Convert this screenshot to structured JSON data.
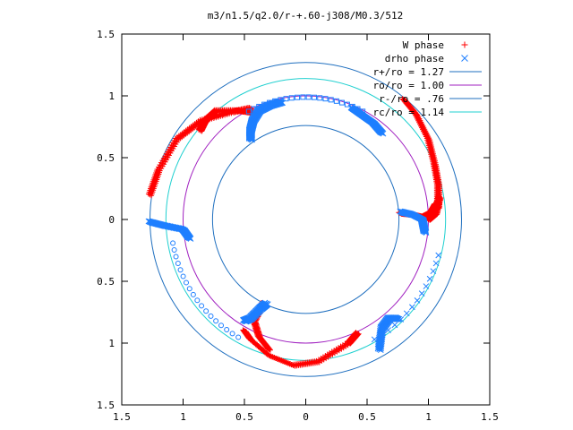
{
  "chart_data": {
    "type": "scatter",
    "title": "m3/n1.5/q2.0/r-+.60-j308/M0.3/512",
    "xlabel": "",
    "ylabel": "",
    "xlim": [
      -1.5,
      1.5
    ],
    "ylim": [
      -1.5,
      1.5
    ],
    "x_ticks": [
      -1.5,
      -1,
      -0.5,
      0,
      0.5,
      1,
      1.5
    ],
    "x_tick_labels": [
      "1.5",
      "1",
      "0.5",
      "0",
      "0.5",
      "1",
      "1.5"
    ],
    "y_ticks": [
      1.5,
      1,
      0.5,
      0,
      -0.5,
      -1,
      -1.5
    ],
    "y_tick_labels": [
      "1.5",
      "1",
      "0.5",
      "0",
      "0.5",
      "1",
      "1.5"
    ],
    "grid": false,
    "legend_position": "top-right",
    "colors": {
      "w_phase": "#ff0000",
      "drho_phase": "#1e7fff",
      "circle_rplus": "#1f6fbf",
      "circle_ro": "#a020c0",
      "circle_rminus": "#1f6fbf",
      "circle_rc": "#20d0d0"
    },
    "circles": [
      {
        "name": "r+/ro = 1.27",
        "radius": 1.27,
        "color_key": "circle_rplus"
      },
      {
        "name": "ro/ro = 1.00",
        "radius": 1.0,
        "color_key": "circle_ro"
      },
      {
        "name": "r-/ro = .76",
        "radius": 0.76,
        "color_key": "circle_rminus"
      },
      {
        "name": "rc/ro = 1.14",
        "radius": 1.14,
        "color_key": "circle_rc"
      }
    ],
    "series": [
      {
        "name": "W phase",
        "marker": "plus",
        "arms": [
          {
            "path": [
              [
                -1.27,
                0.2
              ],
              [
                -1.2,
                0.4
              ],
              [
                -1.05,
                0.65
              ],
              [
                -0.85,
                0.8
              ],
              [
                -0.6,
                0.87
              ],
              [
                -0.45,
                0.9
              ]
            ]
          },
          {
            "path": [
              [
                -0.42,
                0.86
              ],
              [
                -0.55,
                0.88
              ],
              [
                -0.73,
                0.88
              ],
              [
                -0.82,
                0.8
              ],
              [
                -0.86,
                0.72
              ]
            ]
          },
          {
            "path": [
              [
                0.42,
                -0.92
              ],
              [
                0.35,
                -1.0
              ],
              [
                0.1,
                -1.15
              ],
              [
                -0.1,
                -1.18
              ],
              [
                -0.3,
                -1.1
              ],
              [
                -0.45,
                -0.97
              ],
              [
                -0.5,
                -0.9
              ]
            ]
          },
          {
            "path": [
              [
                -0.35,
                -0.68
              ],
              [
                -0.42,
                -0.82
              ],
              [
                -0.38,
                -0.95
              ],
              [
                -0.3,
                -1.05
              ]
            ]
          },
          {
            "path": [
              [
                0.8,
                0.97
              ],
              [
                0.9,
                0.85
              ],
              [
                1.0,
                0.65
              ],
              [
                1.05,
                0.45
              ],
              [
                1.08,
                0.28
              ],
              [
                1.08,
                0.1
              ]
            ]
          },
          {
            "path": [
              [
                0.77,
                0.05
              ],
              [
                0.87,
                0.04
              ],
              [
                0.96,
                0.02
              ],
              [
                1.02,
                0.05
              ],
              [
                1.06,
                0.12
              ]
            ]
          },
          {
            "path": [
              [
                1.0,
                0.0
              ],
              [
                1.06,
                0.05
              ],
              [
                1.09,
                0.18
              ]
            ]
          }
        ]
      },
      {
        "name": "drho phase",
        "marker": "cross",
        "arms": [
          {
            "path": [
              [
                -0.45,
                0.65
              ],
              [
                -0.45,
                0.72
              ],
              [
                -0.43,
                0.8
              ],
              [
                -0.38,
                0.88
              ],
              [
                -0.3,
                0.92
              ],
              [
                -0.2,
                0.95
              ]
            ]
          },
          {
            "path": [
              [
                -1.27,
                -0.02
              ],
              [
                -1.15,
                -0.05
              ],
              [
                -1.0,
                -0.08
              ],
              [
                -0.95,
                -0.15
              ]
            ]
          },
          {
            "path": [
              [
                0.38,
                0.9
              ],
              [
                0.45,
                0.85
              ],
              [
                0.55,
                0.78
              ],
              [
                0.62,
                0.7
              ]
            ]
          },
          {
            "path": [
              [
                -0.5,
                -0.82
              ],
              [
                -0.45,
                -0.8
              ],
              [
                -0.37,
                -0.72
              ],
              [
                -0.32,
                -0.68
              ]
            ]
          },
          {
            "path": [
              [
                0.75,
                -0.8
              ],
              [
                0.68,
                -0.8
              ],
              [
                0.62,
                -0.88
              ],
              [
                0.6,
                -1.05
              ]
            ]
          },
          {
            "path": [
              [
                0.78,
                0.06
              ],
              [
                0.87,
                0.04
              ],
              [
                0.95,
                0.0
              ],
              [
                0.97,
                -0.1
              ]
            ]
          }
        ],
        "rings": [
          {
            "radius": 0.99,
            "from_deg": 62,
            "to_deg": 118,
            "count": 22,
            "marker": "square"
          },
          {
            "radius": 1.1,
            "from_deg": 190,
            "to_deg": 240,
            "count": 18,
            "marker": "circle"
          },
          {
            "radius": 1.12,
            "from_deg": 300,
            "to_deg": 345,
            "count": 14,
            "marker": "cross"
          }
        ]
      }
    ]
  }
}
